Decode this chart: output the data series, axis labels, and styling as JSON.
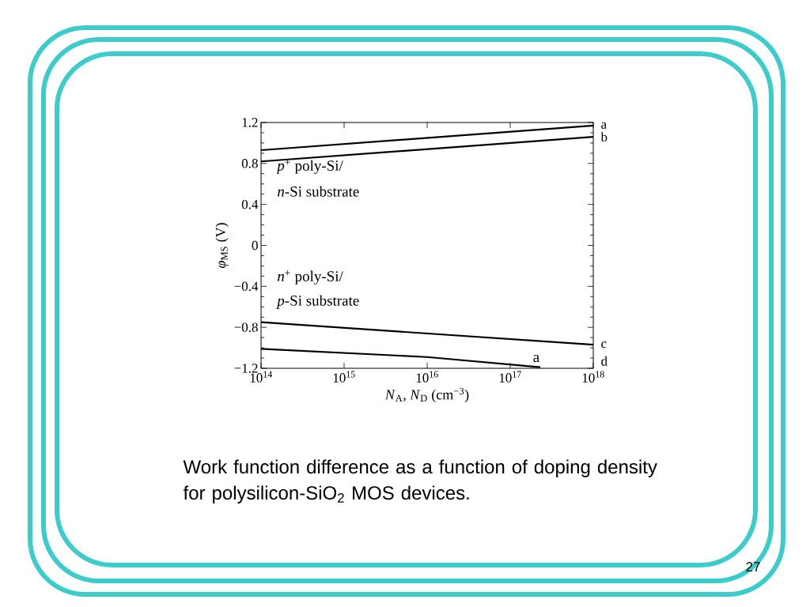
{
  "chart_data": {
    "type": "line",
    "xlabel": "*N*$_{A}$, *N*$_{D}$ (cm$^{−3}$)",
    "ylabel": "*φ*$_{MS}$ (V)",
    "log": "x",
    "xlim": [
      100000000000000.0,
      1e+18
    ],
    "ylim": [
      -1.2,
      1.2
    ],
    "xticks": [
      {
        "value": 100000000000000.0,
        "label": "10$^{14}$"
      },
      {
        "value": 1000000000000000.0,
        "label": "10$^{15}$"
      },
      {
        "value": 1e+16,
        "label": "10$^{16}$"
      },
      {
        "value": 1e+17,
        "label": "10$^{17}$"
      },
      {
        "value": 1e+18,
        "label": "10$^{18}$"
      }
    ],
    "yticks": [
      {
        "value": -1.2,
        "label": "−1.2"
      },
      {
        "value": -0.8,
        "label": "−0.8"
      },
      {
        "value": -0.4,
        "label": "−0.4"
      },
      0,
      0.4,
      0.8,
      1.2
    ],
    "marker": "none",
    "line_style": "solid",
    "grid": false,
    "legend": "right",
    "series": [
      {
        "name": "a",
        "color": "#000000",
        "x": [
          100000000000000.0,
          1e+18
        ],
        "values": [
          0.93,
          1.17
        ]
      },
      {
        "name": "b",
        "color": "#000000",
        "x": [
          100000000000000.0,
          1e+18
        ],
        "values": [
          0.82,
          1.06
        ]
      },
      {
        "name": "c",
        "color": "#000000",
        "x": [
          100000000000000.0,
          1e+18
        ],
        "values": [
          -0.75,
          -0.97
        ]
      },
      {
        "name": "d",
        "color": "#000000",
        "x": [
          100000000000000.0,
          1e+16,
          2.3e+17
        ],
        "values": [
          -1.01,
          -1.09,
          -1.19
        ]
      }
    ],
    "annotations": [
      "*p*$^{+}$ poly-Si/",
      "*n*-Si substrate",
      "*n*$^{+}$ poly-Si/",
      "*p*-Si substrate",
      "a",
      "Work function difference as a function of doping density for polysilicon-SiO$_{2}$ MOS devices.",
      "27"
    ]
  }
}
